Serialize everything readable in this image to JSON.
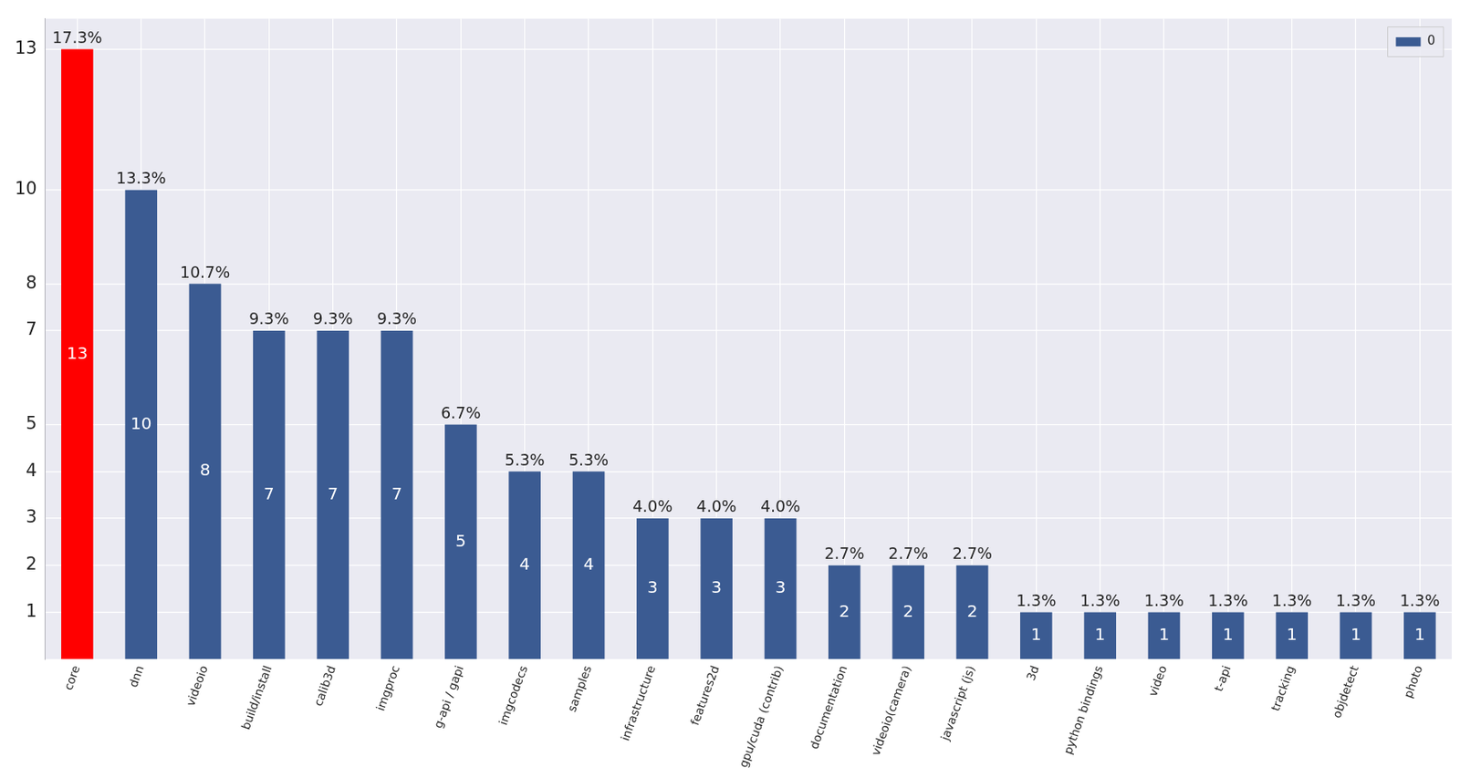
{
  "chart_data": {
    "type": "bar",
    "categories": [
      "core",
      "dnn",
      "videoio",
      "build/install",
      "calib3d",
      "imgproc",
      "g-api / gapi",
      "imgcodecs",
      "samples",
      "infrastructure",
      "features2d",
      "gpu/cuda (contrib)",
      "documentation",
      "videoio(camera)",
      "javascript (js)",
      "3d",
      "python bindings",
      "video",
      "t-api",
      "tracking",
      "objdetect",
      "photo"
    ],
    "series": [
      {
        "name": "0",
        "values": [
          13,
          10,
          8,
          7,
          7,
          7,
          5,
          4,
          4,
          3,
          3,
          3,
          2,
          2,
          2,
          1,
          1,
          1,
          1,
          1,
          1,
          1
        ],
        "color": "#3b5b92",
        "colors": [
          "#ff0000",
          "#3b5b92",
          "#3b5b92",
          "#3b5b92",
          "#3b5b92",
          "#3b5b92",
          "#3b5b92",
          "#3b5b92",
          "#3b5b92",
          "#3b5b92",
          "#3b5b92",
          "#3b5b92",
          "#3b5b92",
          "#3b5b92",
          "#3b5b92",
          "#3b5b92",
          "#3b5b92",
          "#3b5b92",
          "#3b5b92",
          "#3b5b92",
          "#3b5b92",
          "#3b5b92"
        ],
        "percent_labels": [
          "17.3%",
          "13.3%",
          "10.7%",
          "9.3%",
          "9.3%",
          "9.3%",
          "6.7%",
          "5.3%",
          "5.3%",
          "4.0%",
          "4.0%",
          "4.0%",
          "2.7%",
          "2.7%",
          "2.7%",
          "1.3%",
          "1.3%",
          "1.3%",
          "1.3%",
          "1.3%",
          "1.3%",
          "1.3%"
        ]
      }
    ],
    "ylim": [
      0,
      13.65
    ],
    "yticks": [
      1,
      2,
      3,
      4,
      5,
      7,
      8,
      10,
      13
    ],
    "grid": true,
    "legend": "upper right",
    "data_labels": true
  }
}
